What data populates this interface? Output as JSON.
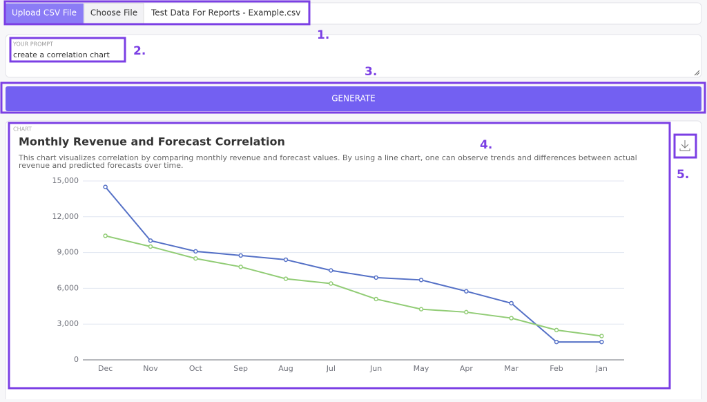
{
  "upload": {
    "button": "Upload CSV File",
    "choose": "Choose File",
    "filename": "Test Data For Reports - Example.csv"
  },
  "prompt": {
    "label": "YOUR PROMPT",
    "text": "create a correlation chart"
  },
  "generate": "GENERATE",
  "chart_label": "CHART",
  "annotations": [
    "1.",
    "2.",
    "3.",
    "4.",
    "5."
  ],
  "chart_data": {
    "type": "line",
    "title": "Monthly Revenue and Forecast Correlation",
    "subtitle": "This chart visualizes correlation by comparing monthly revenue and forecast values. By using a line chart, one can observe trends and differences between actual revenue and predicted forecasts over time.",
    "categories": [
      "Dec",
      "Nov",
      "Oct",
      "Sep",
      "Aug",
      "Jul",
      "Jun",
      "May",
      "Apr",
      "Mar",
      "Feb",
      "Jan"
    ],
    "series": [
      {
        "color": "#5470c6",
        "values": [
          14500,
          10000,
          9100,
          8750,
          8400,
          7500,
          6900,
          6700,
          5750,
          4750,
          1500,
          1500
        ]
      },
      {
        "color": "#91cc75",
        "values": [
          10400,
          9500,
          8500,
          7800,
          6800,
          6400,
          5100,
          4250,
          4000,
          3500,
          2500,
          2000
        ]
      }
    ],
    "ylim": [
      0,
      15000
    ],
    "yticks": [
      0,
      {
        "value": 3000,
        "label": "3,000"
      },
      {
        "value": 6000,
        "label": "6,000"
      },
      {
        "value": 9000,
        "label": "9,000"
      },
      {
        "value": 12000,
        "label": "12,000"
      },
      {
        "value": 15000,
        "label": "15,000"
      }
    ],
    "grid": true
  }
}
